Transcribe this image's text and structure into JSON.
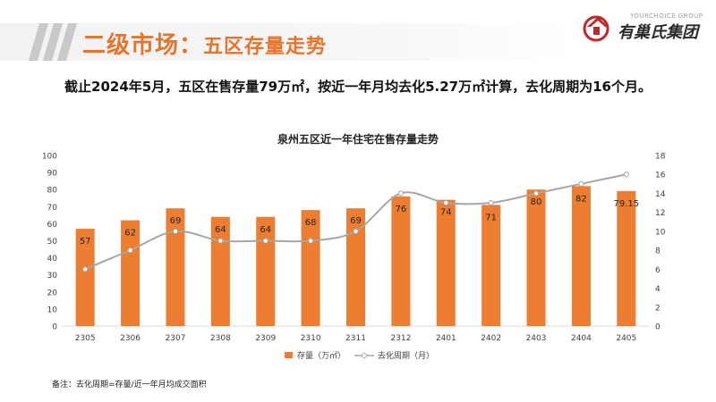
{
  "header": {
    "section_title": "二级市场：",
    "section_subtitle": "五区存量走势",
    "headline": "截止2024年5月，五区在售存量79万㎡，按近一年月均去化5.27万㎡计算，去化周期为16个月。"
  },
  "logo": {
    "en_text": "YOURCHOICE GROUP",
    "cn_text": "有巢氏集团",
    "icon": "house-logo-icon"
  },
  "colors": {
    "accent": "#e8732a",
    "bar": "#ed7d31",
    "line": "#a6a6a6"
  },
  "chart_data": {
    "type": "bar",
    "title": "泉州五区近一年住宅在售存量走势",
    "categories": [
      "2305",
      "2306",
      "2307",
      "2308",
      "2309",
      "2310",
      "2311",
      "2312",
      "2401",
      "2402",
      "2403",
      "2404",
      "2405"
    ],
    "series": [
      {
        "name": "存量（万㎡）",
        "type": "bar",
        "axis": "left",
        "values": [
          57,
          62,
          69,
          64,
          64,
          68,
          69,
          76,
          74,
          71,
          80,
          82,
          79.15
        ],
        "labels": [
          "57",
          "62",
          "69",
          "64",
          "64",
          "68",
          "69",
          "76",
          "74",
          "71",
          "80",
          "82",
          "79.15"
        ]
      },
      {
        "name": "去化周期（月）",
        "type": "line",
        "axis": "right",
        "values": [
          6,
          8,
          10,
          9,
          9,
          9,
          10,
          14,
          13,
          13,
          14,
          15,
          16
        ]
      }
    ],
    "y_left": {
      "min": 0,
      "max": 100,
      "step": 10,
      "ticks": [
        "0",
        "10",
        "20",
        "30",
        "40",
        "50",
        "60",
        "70",
        "80",
        "90",
        "100"
      ]
    },
    "y_right": {
      "min": 0,
      "max": 18,
      "step": 2,
      "ticks": [
        "0",
        "2",
        "4",
        "6",
        "8",
        "10",
        "12",
        "14",
        "16",
        "18"
      ]
    },
    "legend_position": "bottom",
    "grid": false
  },
  "footnote": "备注：去化周期=存量/近一年月均成交面积"
}
